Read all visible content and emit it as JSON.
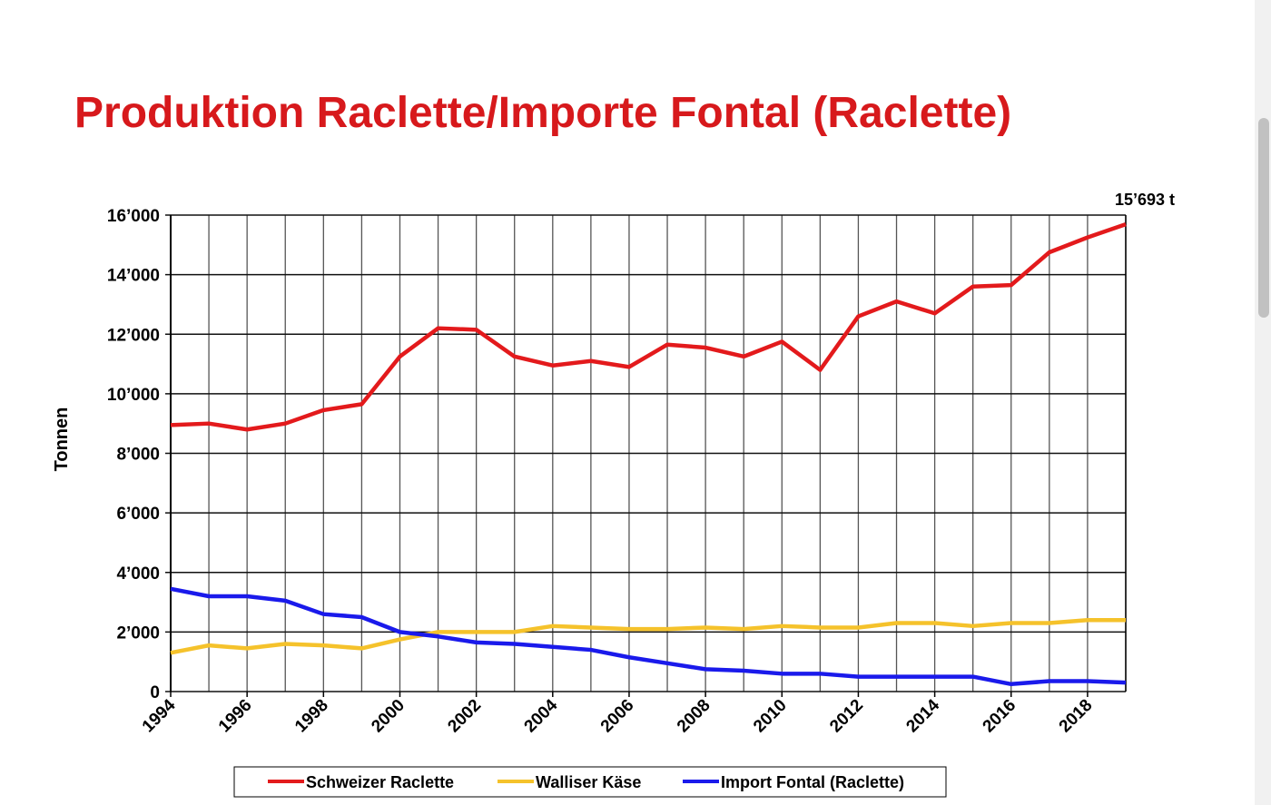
{
  "chart_data": {
    "type": "line",
    "title": "Produktion Raclette/Importe Fontal (Raclette)",
    "y_label": "Tonnen",
    "annotation": "15’693 t",
    "x": [
      1994,
      1995,
      1996,
      1997,
      1998,
      1999,
      2000,
      2001,
      2002,
      2003,
      2004,
      2005,
      2006,
      2007,
      2008,
      2009,
      2010,
      2011,
      2012,
      2013,
      2014,
      2015,
      2016,
      2017,
      2018,
      2019
    ],
    "xlim": [
      1994,
      2019
    ],
    "xticks": [
      1994,
      1996,
      1998,
      2000,
      2002,
      2004,
      2006,
      2008,
      2010,
      2012,
      2014,
      2016,
      2018
    ],
    "ylim": [
      0,
      16000
    ],
    "yticks": [
      0,
      {
        "value": 2000,
        "label": "2’000"
      },
      {
        "value": 4000,
        "label": "4’000"
      },
      {
        "value": 6000,
        "label": "6’000"
      },
      {
        "value": 8000,
        "label": "8’000"
      },
      {
        "value": 10000,
        "label": "10’000"
      },
      {
        "value": 12000,
        "label": "12’000"
      },
      {
        "value": 14000,
        "label": "14’000"
      },
      {
        "value": 16000,
        "label": "16’000"
      }
    ],
    "grid": true,
    "series": [
      {
        "name": "Schweizer Raclette",
        "color": "#e31a1c",
        "values": [
          8950,
          9000,
          8800,
          9000,
          9450,
          9650,
          11250,
          12200,
          12150,
          11250,
          10950,
          11100,
          10900,
          11650,
          11550,
          11250,
          11750,
          10800,
          12600,
          13100,
          12700,
          13600,
          13650,
          14750,
          15250,
          15693
        ]
      },
      {
        "name": "Walliser Käse",
        "color": "#f5c22b",
        "values": [
          1300,
          1550,
          1450,
          1600,
          1550,
          1450,
          1750,
          2000,
          2000,
          2000,
          2200,
          2150,
          2100,
          2100,
          2150,
          2100,
          2200,
          2150,
          2150,
          2300,
          2300,
          2200,
          2300,
          2300,
          2400,
          2400
        ]
      },
      {
        "name": "Import Fontal (Raclette)",
        "color": "#1a1aeb",
        "values": [
          3450,
          3200,
          3200,
          3050,
          2600,
          2500,
          2000,
          1850,
          1650,
          1600,
          1500,
          1400,
          1150,
          950,
          750,
          700,
          600,
          600,
          500,
          500,
          500,
          500,
          250,
          350,
          350,
          300
        ]
      }
    ]
  }
}
